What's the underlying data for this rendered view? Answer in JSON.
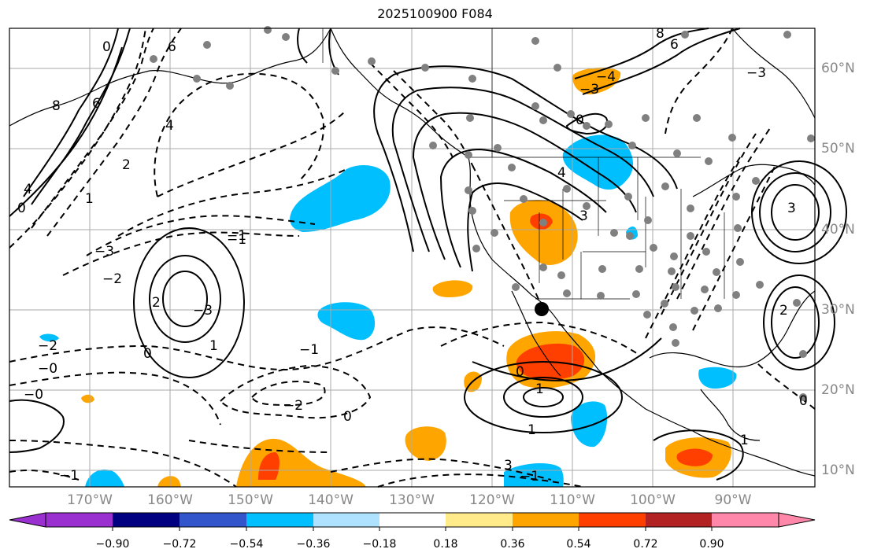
{
  "title": "2025100900 F084",
  "lon_labels": [
    "170°W",
    "160°W",
    "150°W",
    "140°W",
    "130°W",
    "120°W",
    "110°W",
    "100°W",
    "90°W"
  ],
  "lat_labels": [
    "60°N",
    "50°N",
    "40°N",
    "30°N",
    "20°N",
    "10°N"
  ],
  "colorbar": {
    "labels": [
      "−0.90",
      "−0.72",
      "−0.54",
      "−0.36",
      "−0.18",
      "0.18",
      "0.36",
      "0.54",
      "0.72",
      "0.90"
    ],
    "colors": [
      "#9b30d0",
      "#000080",
      "#3355cc",
      "#00bfff",
      "#aee2ff",
      "#ffffff",
      "#ffeb8a",
      "#ffa500",
      "#ff3f00",
      "#b22222",
      "#ff88aa"
    ]
  },
  "contour_labels": [
    "0",
    "6",
    "8",
    "6",
    "4",
    "2",
    "1",
    "0",
    "−3",
    "−1",
    "−2",
    "−3",
    "−2",
    "−1",
    "−0",
    "−0",
    "0",
    "−1",
    "−2",
    "0",
    "1",
    "2",
    "3",
    "1",
    "0",
    "−1",
    "−4",
    "−3",
    "4",
    "3",
    "0",
    "−1",
    "1",
    "−3",
    "8",
    "6",
    "4",
    "3",
    "2",
    "1",
    "0"
  ],
  "colors": {
    "blue_anomaly": "#00bfff",
    "orange_anomaly": "#ffa500",
    "red_anomaly": "#ff3f00",
    "grid": "#aaaaaa",
    "station_dot": "#808080"
  }
}
